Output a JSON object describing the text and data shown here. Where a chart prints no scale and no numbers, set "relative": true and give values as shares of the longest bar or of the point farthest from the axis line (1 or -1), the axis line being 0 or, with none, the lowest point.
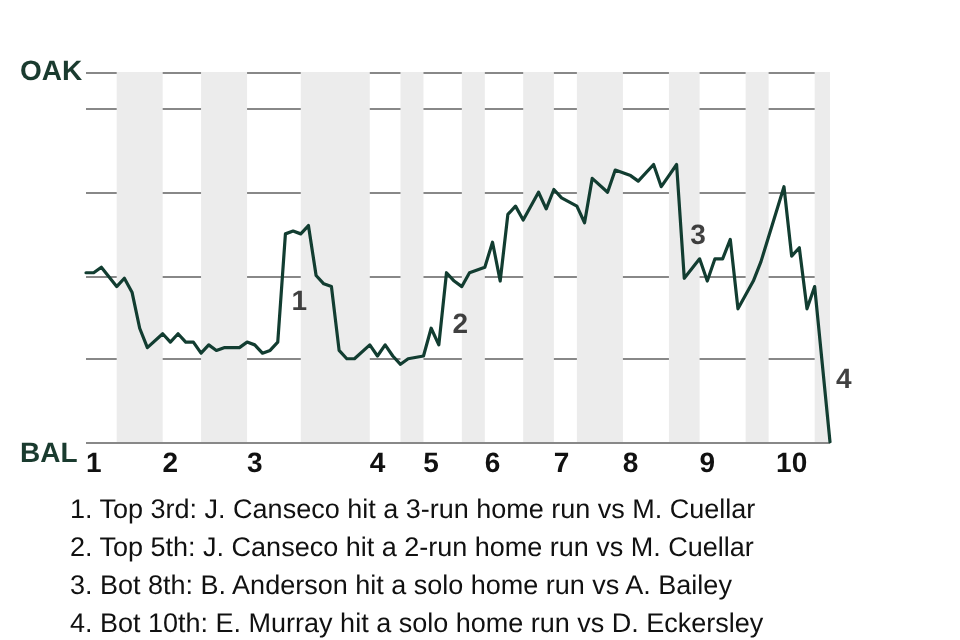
{
  "chart_data": {
    "type": "line",
    "relative": true,
    "categories": [
      null,
      "1",
      null,
      null,
      null,
      null,
      null,
      null,
      null,
      null,
      null,
      "2",
      null,
      null,
      null,
      null,
      null,
      null,
      null,
      null,
      null,
      null,
      "3",
      null,
      null,
      null,
      null,
      null,
      null,
      null,
      null,
      null,
      null,
      null,
      null,
      null,
      null,
      null,
      "4",
      null,
      null,
      null,
      null,
      null,
      null,
      "5",
      null,
      null,
      null,
      null,
      null,
      null,
      null,
      "6",
      null,
      null,
      null,
      null,
      null,
      null,
      null,
      null,
      "7",
      null,
      null,
      null,
      null,
      null,
      null,
      null,
      null,
      "8",
      null,
      null,
      null,
      null,
      null,
      null,
      null,
      null,
      null,
      "9",
      null,
      null,
      null,
      null,
      null,
      null,
      null,
      null,
      null,
      null,
      "10",
      null,
      null,
      null,
      null,
      null
    ],
    "series": [
      {
        "color": "#123d31",
        "values": [
          0.61,
          0.61,
          0.63,
          null,
          0.56,
          0.59,
          0.54,
          0.41,
          0.34,
          null,
          0.39,
          0.36,
          0.39,
          0.36,
          0.36,
          0.32,
          0.35,
          0.33,
          0.34,
          null,
          0.34,
          0.36,
          0.35,
          0.32,
          0.33,
          0.36,
          0.75,
          0.76,
          0.75,
          0.78,
          0.6,
          0.57,
          0.56,
          0.33,
          0.3,
          0.3,
          null,
          0.35,
          0.31,
          0.35,
          0.31,
          0.28,
          0.3,
          null,
          0.31,
          0.41,
          0.35,
          0.61,
          0.58,
          0.56,
          0.61,
          null,
          0.63,
          0.72,
          0.58,
          0.82,
          0.85,
          0.8,
          null,
          0.9,
          0.84,
          0.91,
          0.88,
          null,
          0.85,
          0.79,
          0.95,
          null,
          0.9,
          0.98,
          null,
          0.96,
          0.94,
          null,
          1,
          0.92,
          0.96,
          1,
          0.59,
          null,
          0.66,
          0.58,
          0.66,
          0.66,
          0.73,
          0.48,
          null,
          0.58,
          0.65,
          null,
          null,
          0.92,
          0.67,
          0.7,
          0.48,
          0.56,
          0.28,
          0
        ]
      }
    ],
    "grid": "y",
    "marker": "none",
    "line_style": "solid",
    "annotations": [
      "OAK",
      "BAL",
      "1",
      "2",
      "3",
      "4",
      "1. Top 3rd: J. Canseco hit a 3-run home run vs M. Cuellar",
      "2. Top 5th: J. Canseco hit a 2-run home run vs M. Cuellar",
      "3. Bot 8th: B. Anderson hit a solo home run vs A. Bailey",
      "4. Bot 10th: E. Murray hit a solo home run vs D. Eckersley"
    ]
  }
}
